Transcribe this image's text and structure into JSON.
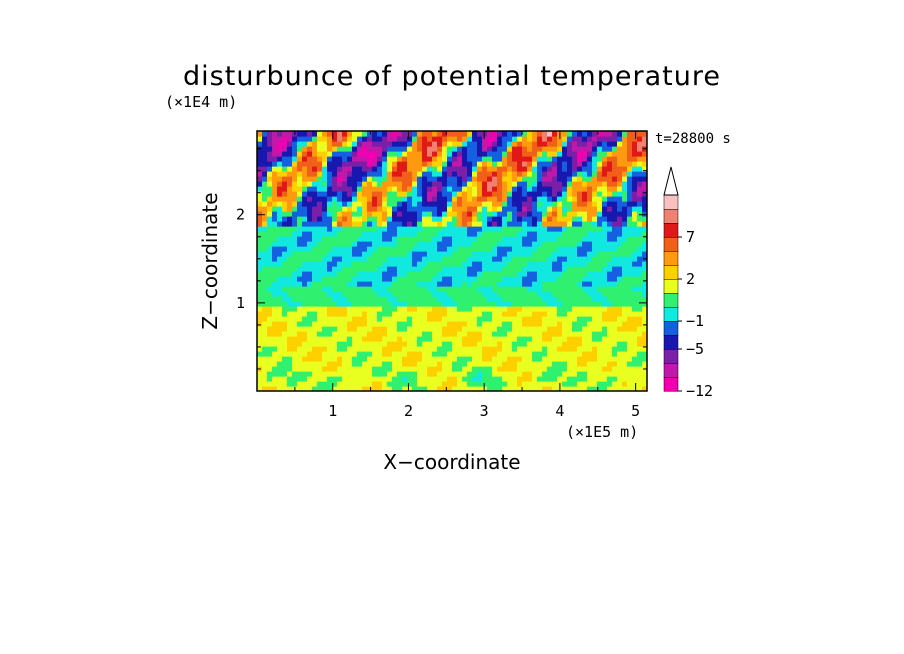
{
  "chart_data": {
    "type": "heatmap",
    "title": "disturbunce of potential temperature",
    "xlabel": "X−coordinate",
    "ylabel": "Z−coordinate",
    "x_unit": "(×1E5 m)",
    "y_unit": "(×1E4 m)",
    "time_label": "t=28800 s",
    "xlim": [
      0,
      5.15
    ],
    "ylim": [
      0,
      2.95
    ],
    "x_ticks": [
      "1",
      "2",
      "3",
      "4",
      "5"
    ],
    "y_ticks": [
      "1",
      "2"
    ],
    "colorbar": {
      "levels": [
        -12,
        -9,
        -7,
        -5,
        -3,
        -1,
        0,
        1,
        2,
        3,
        5,
        7,
        9,
        11
      ],
      "tick_labels": [
        "7",
        "2",
        "−1",
        "−5",
        "−12"
      ],
      "colors": [
        "#f000b0",
        "#c018a8",
        "#7a1fa8",
        "#1818b0",
        "#1560e0",
        "#10e8e0",
        "#30f070",
        "#e8ff20",
        "#ffd000",
        "#ff9a10",
        "#f06018",
        "#e01818",
        "#f08070",
        "#f8c0c0"
      ],
      "extend": "max"
    },
    "field_description": [
      {
        "z_range": [
          0,
          0.95
        ],
        "x_range": [
          0,
          5.15
        ],
        "value_range": [
          0,
          2
        ],
        "dominant": "yellow/orange"
      },
      {
        "z_range": [
          0.95,
          1.2
        ],
        "x_range": [
          0,
          5.15
        ],
        "value_range": [
          0,
          1
        ],
        "dominant": "yellow-green"
      },
      {
        "z_range": [
          1.2,
          1.85
        ],
        "x_range": [
          0,
          5.15
        ],
        "value_range": [
          -1,
          0
        ],
        "dominant": "green"
      },
      {
        "z_range": [
          1.85,
          2.95
        ],
        "x_range": [
          0,
          5.15
        ],
        "value_range": [
          -9,
          5
        ],
        "dominant": "mixed"
      }
    ]
  }
}
